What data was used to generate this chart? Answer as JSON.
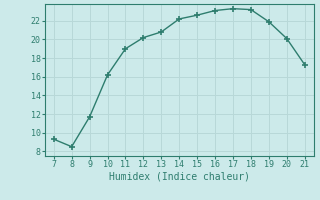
{
  "x": [
    7,
    8,
    9,
    10,
    11,
    12,
    13,
    14,
    15,
    16,
    17,
    18,
    19,
    20,
    21
  ],
  "y": [
    9.3,
    8.5,
    11.7,
    16.2,
    19.0,
    20.2,
    20.8,
    22.2,
    22.6,
    23.1,
    23.3,
    23.2,
    21.9,
    20.1,
    17.3
  ],
  "line_color": "#2e7d6e",
  "marker": "+",
  "marker_size": 4,
  "marker_linewidth": 1.2,
  "bg_color": "#cceaea",
  "grid_color": "#b8d8d8",
  "xlabel": "Humidex (Indice chaleur)",
  "xlabel_fontsize": 7,
  "tick_fontsize": 6,
  "xlim": [
    6.5,
    21.5
  ],
  "ylim": [
    7.5,
    23.8
  ],
  "yticks": [
    8,
    10,
    12,
    14,
    16,
    18,
    20,
    22
  ],
  "xticks": [
    7,
    8,
    9,
    10,
    11,
    12,
    13,
    14,
    15,
    16,
    17,
    18,
    19,
    20,
    21
  ]
}
